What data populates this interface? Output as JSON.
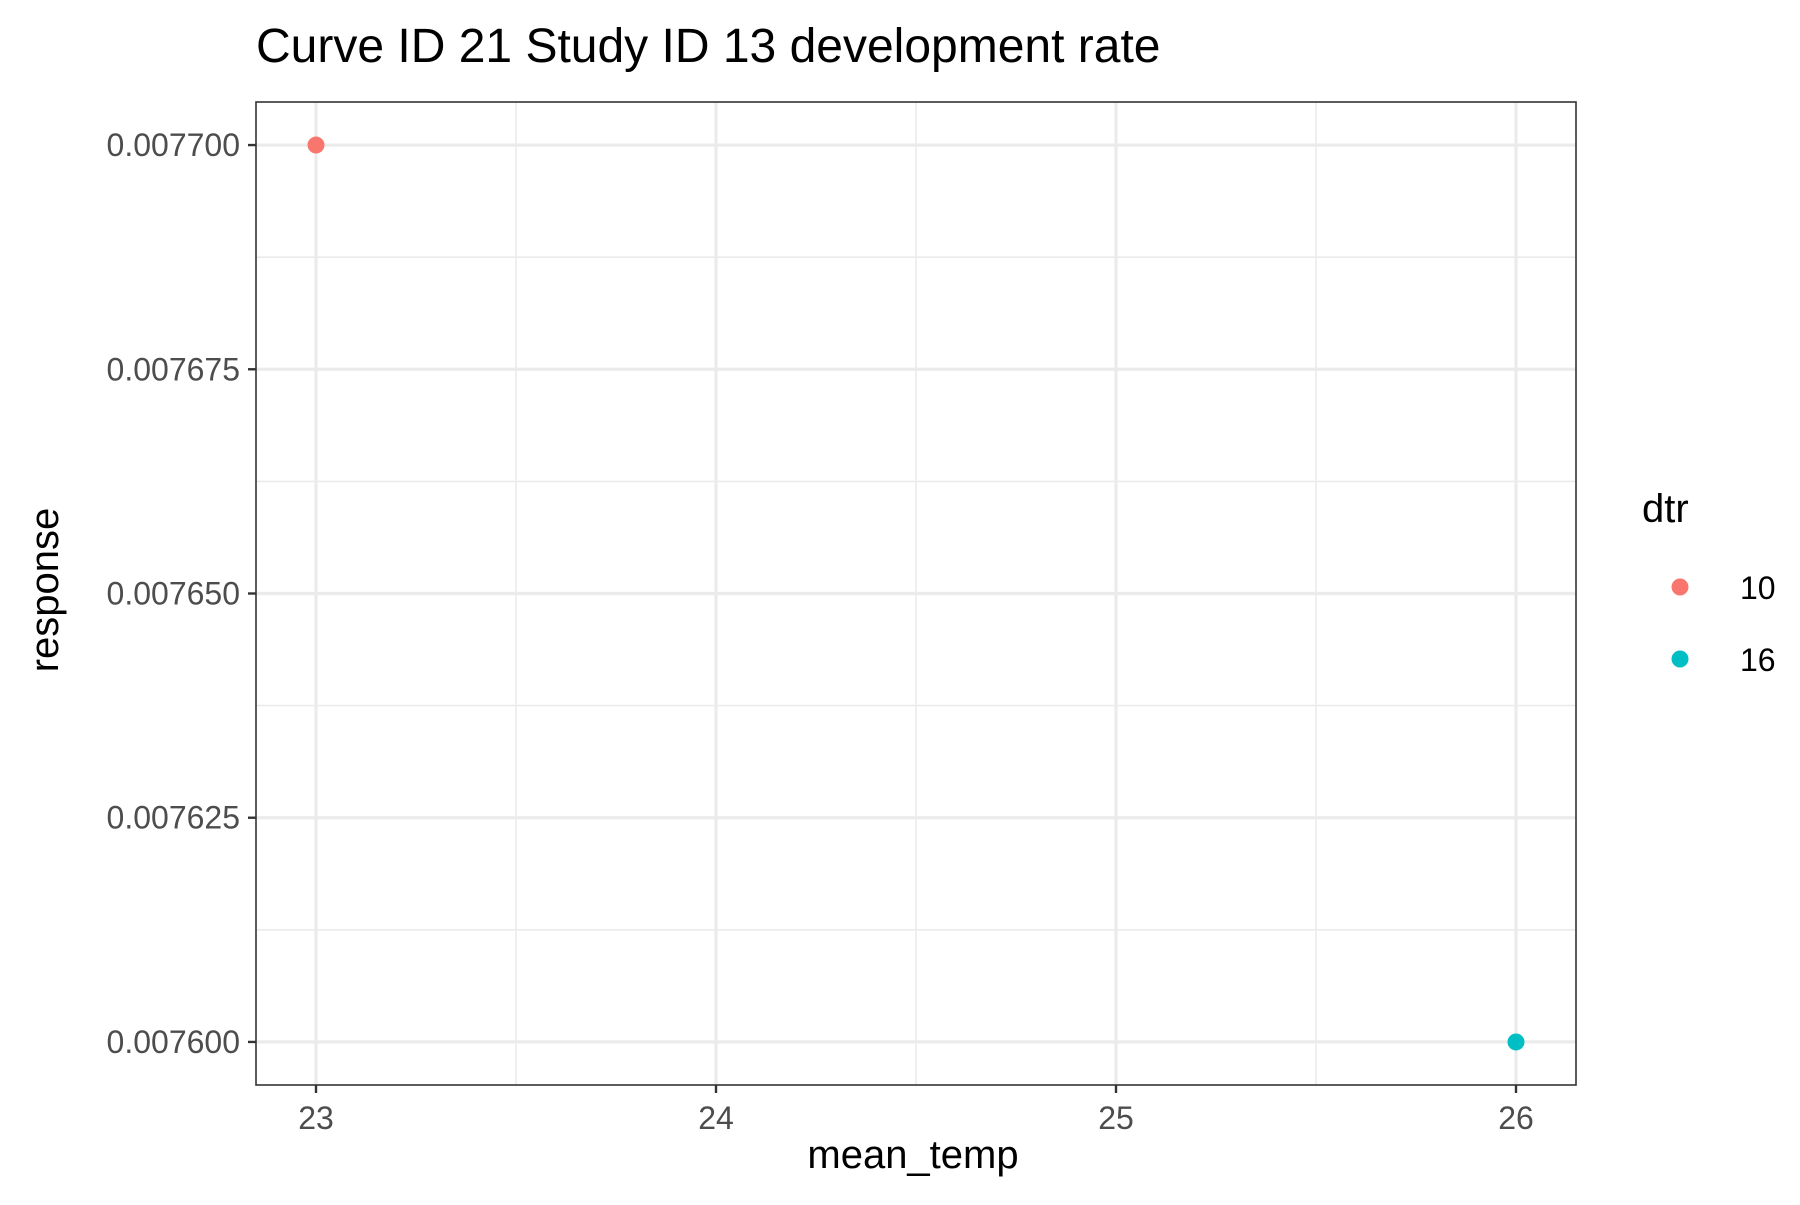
{
  "chart_data": {
    "type": "scatter",
    "title": "Curve ID 21 Study ID 13 development rate",
    "xlabel": "mean_temp",
    "ylabel": "response",
    "xlim": [
      22.85,
      26.15
    ],
    "ylim": [
      0.0075952,
      0.0077048
    ],
    "x_ticks": [
      23,
      24,
      25,
      26
    ],
    "x_tick_labels": [
      "23",
      "24",
      "25",
      "26"
    ],
    "y_ticks": [
      0.0076,
      0.007625,
      0.00765,
      0.007675,
      0.0077
    ],
    "y_tick_labels": [
      "0.007600",
      "0.007625",
      "0.007650",
      "0.007675",
      "0.007700"
    ],
    "grid": true,
    "legend": {
      "title": "dtr",
      "position": "right",
      "entries": [
        {
          "label": "10",
          "color": "#F8766D"
        },
        {
          "label": "16",
          "color": "#00BFC4"
        }
      ]
    },
    "series": [
      {
        "name": "10",
        "color": "#F8766D",
        "points": [
          {
            "x": 23,
            "y": 0.0077
          }
        ]
      },
      {
        "name": "16",
        "color": "#00BFC4",
        "points": [
          {
            "x": 26,
            "y": 0.0076
          }
        ]
      }
    ]
  }
}
